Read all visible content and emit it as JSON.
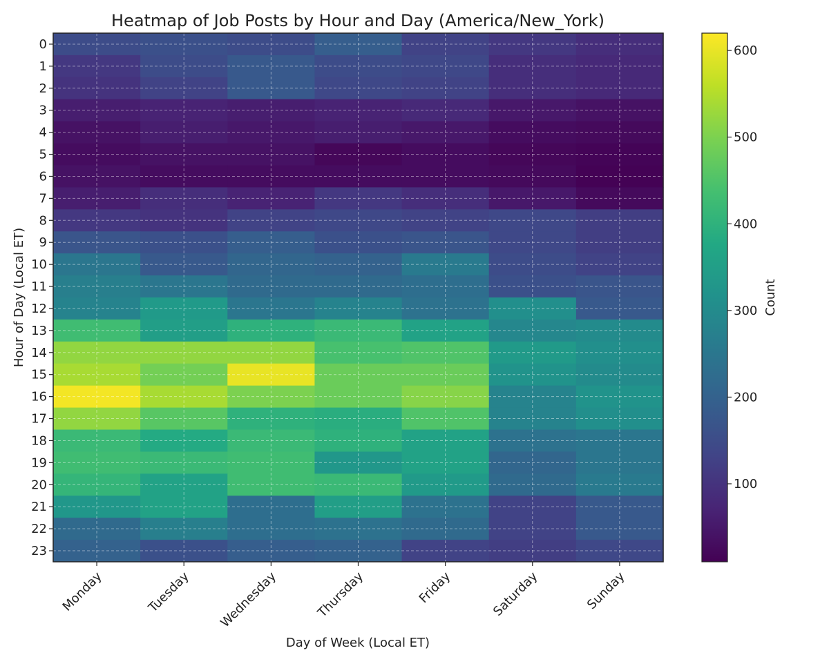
{
  "chart_data": {
    "type": "heatmap",
    "title": "Heatmap of Job Posts by Hour and Day (America/New_York)",
    "xlabel": "Day of Week (Local ET)",
    "ylabel": "Hour of Day (Local ET)",
    "x": [
      "Monday",
      "Tuesday",
      "Wednesday",
      "Thursday",
      "Friday",
      "Saturday",
      "Sunday"
    ],
    "y": [
      "0",
      "1",
      "2",
      "3",
      "4",
      "5",
      "6",
      "7",
      "8",
      "9",
      "10",
      "11",
      "12",
      "13",
      "14",
      "15",
      "16",
      "17",
      "18",
      "19",
      "20",
      "21",
      "22",
      "23"
    ],
    "values": [
      [
        150,
        160,
        150,
        190,
        130,
        110,
        90
      ],
      [
        110,
        150,
        180,
        150,
        140,
        90,
        80
      ],
      [
        100,
        130,
        180,
        140,
        130,
        90,
        80
      ],
      [
        60,
        70,
        60,
        70,
        80,
        50,
        40
      ],
      [
        40,
        60,
        50,
        60,
        50,
        30,
        25
      ],
      [
        30,
        40,
        40,
        20,
        30,
        20,
        15
      ],
      [
        40,
        30,
        30,
        30,
        30,
        25,
        12
      ],
      [
        60,
        90,
        70,
        110,
        90,
        50,
        25
      ],
      [
        110,
        100,
        130,
        140,
        130,
        140,
        120
      ],
      [
        170,
        160,
        190,
        160,
        170,
        140,
        120
      ],
      [
        250,
        180,
        210,
        200,
        260,
        150,
        130
      ],
      [
        270,
        250,
        220,
        220,
        230,
        160,
        170
      ],
      [
        280,
        340,
        250,
        280,
        240,
        310,
        180
      ],
      [
        430,
        350,
        400,
        420,
        360,
        290,
        300
      ],
      [
        520,
        520,
        520,
        440,
        450,
        340,
        310
      ],
      [
        540,
        490,
        600,
        480,
        480,
        320,
        300
      ],
      [
        610,
        540,
        500,
        480,
        510,
        280,
        320
      ],
      [
        520,
        460,
        400,
        390,
        450,
        280,
        310
      ],
      [
        420,
        380,
        420,
        400,
        360,
        240,
        250
      ],
      [
        430,
        420,
        430,
        330,
        360,
        210,
        250
      ],
      [
        410,
        360,
        430,
        420,
        340,
        220,
        260
      ],
      [
        330,
        360,
        230,
        350,
        240,
        130,
        180
      ],
      [
        220,
        270,
        230,
        240,
        220,
        130,
        180
      ],
      [
        200,
        160,
        190,
        200,
        130,
        120,
        140
      ]
    ],
    "vmin": 10,
    "vmax": 620,
    "colorbar": {
      "label": "Count",
      "ticks": [
        100,
        200,
        300,
        400,
        500,
        600
      ]
    },
    "grid": true,
    "colormap": "viridis"
  }
}
